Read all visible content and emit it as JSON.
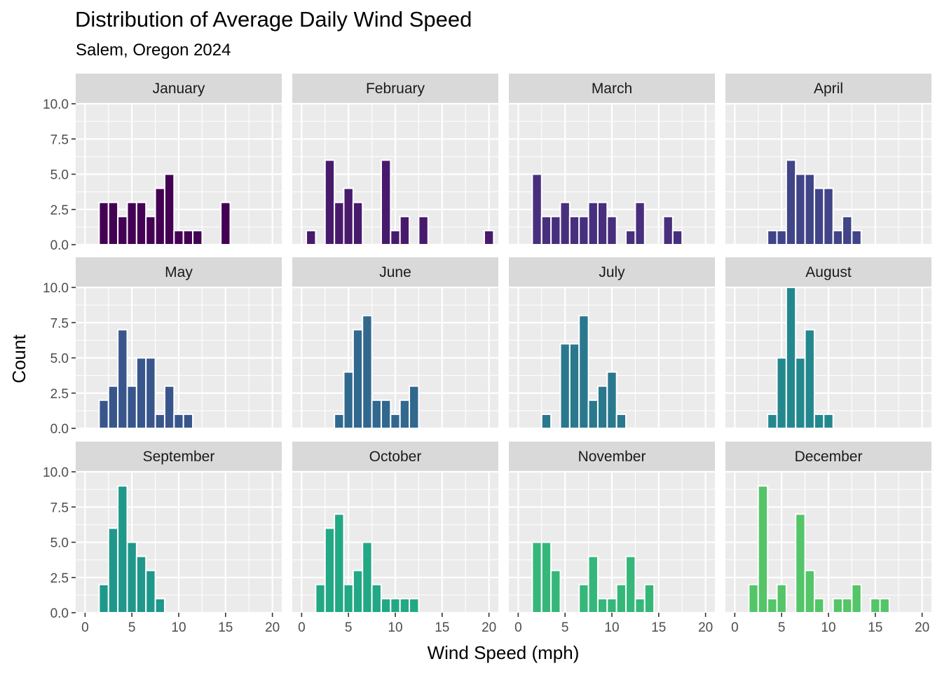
{
  "chart_data": {
    "type": "bar",
    "title": "Distribution of Average Daily Wind Speed",
    "subtitle": "Salem, Oregon 2024",
    "xlabel": "Wind Speed (mph)",
    "ylabel": "Count",
    "xlim": [
      -1,
      21
    ],
    "ylim": [
      0,
      10
    ],
    "x_ticks": [
      0,
      5,
      10,
      15,
      20
    ],
    "y_ticks": [
      "0.0",
      "2.5",
      "5.0",
      "7.5",
      "10.0"
    ],
    "bin_width": 1,
    "bin_centers": [
      1,
      2,
      3,
      4,
      5,
      6,
      7,
      8,
      9,
      10,
      11,
      12,
      13,
      14,
      15,
      16,
      17,
      18,
      19,
      20
    ],
    "grid": true,
    "legend": "none",
    "panels": [
      {
        "name": "January",
        "color": "#440154",
        "counts": [
          0,
          3,
          3,
          2,
          3,
          3,
          2,
          4,
          5,
          1,
          1,
          1,
          0,
          0,
          3,
          0,
          0,
          0,
          0,
          0
        ]
      },
      {
        "name": "February",
        "color": "#481A6C",
        "counts": [
          1,
          0,
          6,
          3,
          4,
          3,
          0,
          0,
          6,
          1,
          2,
          0,
          2,
          0,
          0,
          0,
          0,
          0,
          0,
          1
        ]
      },
      {
        "name": "March",
        "color": "#472F7D",
        "counts": [
          0,
          5,
          2,
          2,
          3,
          2,
          2,
          3,
          3,
          2,
          0,
          1,
          3,
          0,
          0,
          2,
          1,
          0,
          0,
          0
        ]
      },
      {
        "name": "April",
        "color": "#414487",
        "counts": [
          0,
          0,
          0,
          1,
          1,
          6,
          5,
          5,
          4,
          4,
          1,
          2,
          1,
          0,
          0,
          0,
          0,
          0,
          0,
          0
        ]
      },
      {
        "name": "May",
        "color": "#39568C",
        "counts": [
          0,
          2,
          3,
          7,
          3,
          5,
          5,
          1,
          3,
          1,
          1,
          0,
          0,
          0,
          0,
          0,
          0,
          0,
          0,
          0
        ]
      },
      {
        "name": "June",
        "color": "#31688E",
        "counts": [
          0,
          0,
          0,
          1,
          4,
          7,
          8,
          2,
          2,
          1,
          2,
          3,
          0,
          0,
          0,
          0,
          0,
          0,
          0,
          0
        ]
      },
      {
        "name": "July",
        "color": "#2A788E",
        "counts": [
          0,
          0,
          1,
          0,
          6,
          6,
          8,
          2,
          3,
          4,
          1,
          0,
          0,
          0,
          0,
          0,
          0,
          0,
          0,
          0
        ]
      },
      {
        "name": "August",
        "color": "#23888E",
        "counts": [
          0,
          0,
          0,
          1,
          5,
          10,
          5,
          7,
          1,
          1,
          0,
          0,
          0,
          0,
          0,
          0,
          0,
          0,
          0,
          0
        ]
      },
      {
        "name": "September",
        "color": "#1F988B",
        "counts": [
          0,
          2,
          6,
          9,
          5,
          4,
          3,
          1,
          0,
          0,
          0,
          0,
          0,
          0,
          0,
          0,
          0,
          0,
          0,
          0
        ]
      },
      {
        "name": "October",
        "color": "#22A884",
        "counts": [
          0,
          2,
          6,
          7,
          2,
          3,
          5,
          2,
          1,
          1,
          1,
          1,
          0,
          0,
          0,
          0,
          0,
          0,
          0,
          0
        ]
      },
      {
        "name": "November",
        "color": "#35B779",
        "counts": [
          0,
          5,
          5,
          3,
          0,
          0,
          2,
          4,
          1,
          1,
          2,
          4,
          1,
          2,
          0,
          0,
          0,
          0,
          0,
          0
        ]
      },
      {
        "name": "December",
        "color": "#54C568",
        "counts": [
          0,
          2,
          9,
          1,
          2,
          0,
          7,
          3,
          1,
          0,
          1,
          1,
          2,
          0,
          1,
          1,
          0,
          0,
          0,
          0
        ]
      }
    ]
  }
}
